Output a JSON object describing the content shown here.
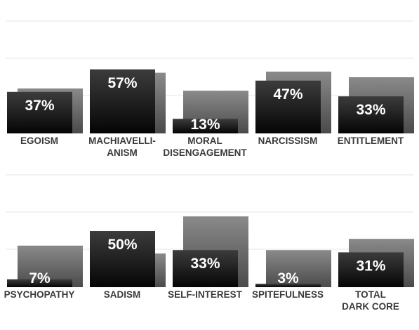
{
  "chart_data": {
    "type": "bar",
    "title": "",
    "xlabel": "",
    "ylabel": "",
    "grid": true,
    "legend": "none",
    "ylim": [
      0,
      100
    ],
    "panels": [
      {
        "categories": [
          {
            "label_lines": [
              "EGOISM"
            ],
            "value": 37,
            "value_label": "37%",
            "back_value": 40
          },
          {
            "label_lines": [
              "MACHIAVELLI-",
              "ANISM"
            ],
            "value": 57,
            "value_label": "57%",
            "back_value": 54
          },
          {
            "label_lines": [
              "MORAL",
              "DISENGAGEMENT"
            ],
            "value": 13,
            "value_label": "13%",
            "back_value": 38
          },
          {
            "label_lines": [
              "NARCISSISM"
            ],
            "value": 47,
            "value_label": "47%",
            "back_value": 55
          },
          {
            "label_lines": [
              "ENTITLEMENT"
            ],
            "value": 33,
            "value_label": "33%",
            "back_value": 50
          }
        ]
      },
      {
        "categories": [
          {
            "label_lines": [
              "PSYCHOPATHY"
            ],
            "value": 7,
            "value_label": "7%",
            "back_value": 37
          },
          {
            "label_lines": [
              "SADISM"
            ],
            "value": 50,
            "value_label": "50%",
            "back_value": 30
          },
          {
            "label_lines": [
              "SELF-INTEREST"
            ],
            "value": 33,
            "value_label": "33%",
            "back_value": 63
          },
          {
            "label_lines": [
              "SPITEFULNESS"
            ],
            "value": 3,
            "value_label": "3%",
            "back_value": 33
          },
          {
            "label_lines": [
              "TOTAL",
              "DARK CORE"
            ],
            "value": 31,
            "value_label": "31%",
            "back_value": 43
          }
        ]
      }
    ],
    "colors": {
      "front_top": "#3c3c3c",
      "front_bottom": "#050505",
      "back_top": "#8a8a8a",
      "back_bottom": "#4a4a4a",
      "grid": "#e6e6e6",
      "label": "#3a3a3a",
      "value": "#ffffff"
    }
  }
}
